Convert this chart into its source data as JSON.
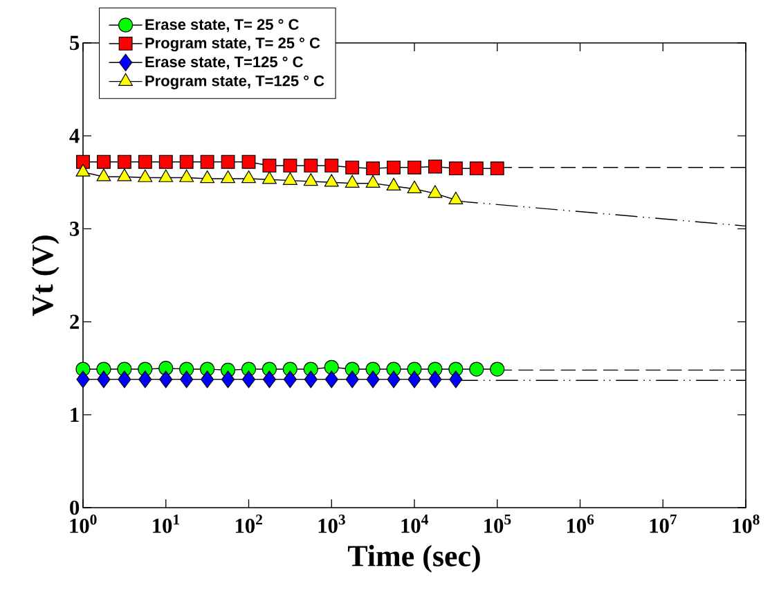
{
  "chart_data": {
    "type": "line",
    "xlabel": "Time (sec)",
    "ylabel": "Vt (V)",
    "log": "x",
    "legend": "top left",
    "xlim": [
      1,
      100000000
    ],
    "ylim": [
      0,
      5
    ],
    "xticks": [
      {
        "value": 1,
        "label": "10$^{0}$"
      },
      {
        "value": 10,
        "label": "10$^{1}$"
      },
      {
        "value": 100,
        "label": "10$^{2}$"
      },
      {
        "value": 1000,
        "label": "10$^{3}$"
      },
      {
        "value": 10000,
        "label": "10$^{4}$"
      },
      {
        "value": 100000,
        "label": "10$^{5}$"
      },
      {
        "value": 1000000,
        "label": "10$^{6}$"
      },
      {
        "value": 10000000,
        "label": "10$^{7}$"
      },
      {
        "value": 100000000,
        "label": "10$^{8}$"
      }
    ],
    "yticks": [
      0,
      1,
      2,
      3,
      4,
      5
    ],
    "x": [
      1,
      1.778,
      3.162,
      5.623,
      10,
      17.78,
      31.62,
      56.23,
      100,
      177.8,
      316.2,
      562.3,
      1000,
      1778,
      3162,
      5623,
      10000,
      17783,
      31623,
      56234,
      100000
    ],
    "series": [
      {
        "name": "Erase state, T= 25 ° C",
        "color": "#00ff00",
        "marker": "circle",
        "values": [
          1.49,
          1.49,
          1.49,
          1.49,
          1.5,
          1.49,
          1.49,
          1.48,
          1.49,
          1.49,
          1.49,
          1.49,
          1.51,
          1.49,
          1.49,
          1.49,
          1.49,
          1.49,
          1.49,
          1.49,
          1.49
        ]
      },
      {
        "name": "Program state, T= 25 ° C",
        "color": "#ff0000",
        "marker": "square",
        "values": [
          3.72,
          3.72,
          3.72,
          3.72,
          3.72,
          3.72,
          3.72,
          3.72,
          3.72,
          3.68,
          3.68,
          3.68,
          3.68,
          3.66,
          3.65,
          3.66,
          3.66,
          3.67,
          3.65,
          3.65,
          3.65
        ]
      },
      {
        "name": "Erase state, T=125 ° C",
        "color": "#0000ff",
        "marker": "diamond",
        "values": [
          1.38,
          1.38,
          1.38,
          1.38,
          1.38,
          1.38,
          1.38,
          1.38,
          1.38,
          1.38,
          1.38,
          1.38,
          1.38,
          1.38,
          1.38,
          1.38,
          1.38,
          1.38,
          1.38,
          null,
          null
        ]
      },
      {
        "name": "Program state, T=125 ° C",
        "color": "#ffff00",
        "marker": "triangle",
        "values": [
          3.61,
          3.56,
          3.56,
          3.55,
          3.55,
          3.55,
          3.54,
          3.54,
          3.54,
          3.53,
          3.52,
          3.51,
          3.5,
          3.49,
          3.49,
          3.46,
          3.43,
          3.38,
          3.31,
          null,
          null
        ]
      },
      {
        "type": "line",
        "color": "#000000",
        "marker": "none",
        "line_style": "dashed",
        "x": [
          100000,
          100000000
        ],
        "values": [
          1.48,
          1.48
        ]
      },
      {
        "type": "line",
        "color": "#000000",
        "marker": "none",
        "line_style": "dashed",
        "x": [
          100000,
          100000000
        ],
        "values": [
          3.66,
          3.66
        ]
      },
      {
        "type": "line",
        "color": "#000000",
        "marker": "none",
        "line_style": "dashdotdot",
        "x": [
          31623,
          100000000
        ],
        "values": [
          1.37,
          1.37
        ]
      },
      {
        "type": "line",
        "color": "#000000",
        "marker": "none",
        "line_style": "dashdotdot",
        "x": [
          31623,
          100000000
        ],
        "values": [
          3.3,
          3.03
        ]
      }
    ]
  }
}
